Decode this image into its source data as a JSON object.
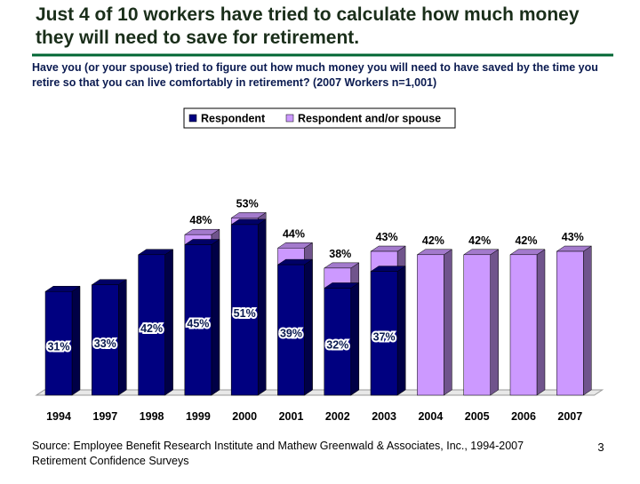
{
  "chart_data": {
    "type": "bar",
    "title": "Just 4 of 10 workers have tried to calculate how much money they will need to save for retirement.",
    "subtitle": "Have you (or your spouse) tried to figure out how much money you will need to have saved by the time you retire so that you can live comfortably in retirement? (2007 Workers n=1,001)",
    "categories": [
      "1994",
      "1997",
      "1998",
      "1999",
      "2000",
      "2001",
      "2002",
      "2003",
      "2004",
      "2005",
      "2006",
      "2007"
    ],
    "series": [
      {
        "name": "Respondent",
        "color": "#000080",
        "values": [
          31,
          33,
          42,
          45,
          51,
          39,
          32,
          37,
          null,
          null,
          null,
          null
        ],
        "value_labels": [
          "31%",
          "33%",
          "42%",
          "45%",
          "51%",
          "39%",
          "32%",
          "37%",
          null,
          null,
          null,
          null
        ]
      },
      {
        "name": "Respondent and/or spouse",
        "color": "#cc99ff",
        "values": [
          null,
          null,
          null,
          48,
          53,
          44,
          38,
          43,
          42,
          42,
          42,
          43
        ],
        "value_labels": [
          null,
          null,
          null,
          "48%",
          "53%",
          "44%",
          "38%",
          "43%",
          "42%",
          "42%",
          "42%",
          "43%"
        ]
      }
    ],
    "ylim": [
      0,
      60
    ],
    "source": "Source: Employee Benefit Research Institute and Mathew Greenwald & Associates, Inc., 1994-2007 Retirement Confidence Surveys",
    "page_number": "3"
  }
}
